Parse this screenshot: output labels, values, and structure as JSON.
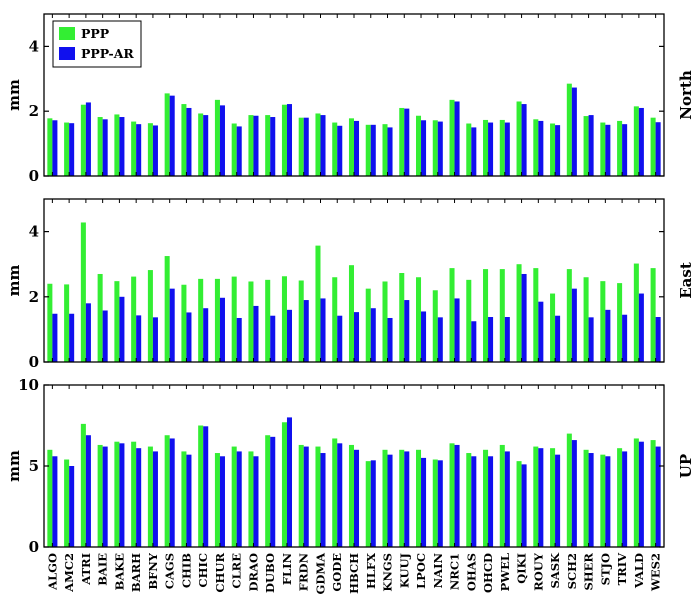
{
  "chart_data": {
    "type": "bar",
    "categories": [
      "ALGO",
      "AMC2",
      "ATRI",
      "BAIE",
      "BAKE",
      "BARH",
      "BFNY",
      "CAGS",
      "CHIB",
      "CHIC",
      "CHUR",
      "CLRE",
      "DRAO",
      "DUBO",
      "FLIN",
      "FRDN",
      "GDMA",
      "GODE",
      "HBCH",
      "HLFX",
      "KNGS",
      "KUUJ",
      "LPOC",
      "NAIN",
      "NRC1",
      "OHAS",
      "OHCD",
      "PWEL",
      "QIKI",
      "ROUY",
      "SASK",
      "SCH2",
      "SHER",
      "STJO",
      "TRIV",
      "VALD",
      "WES2"
    ],
    "legend": {
      "position": "top-left",
      "entries": [
        {
          "name": "PPP",
          "color": "#33ee33"
        },
        {
          "name": "PPP-AR",
          "color": "#1010ee"
        }
      ]
    },
    "colors": {
      "PPP": "#33ee33",
      "PPP-AR": "#1010ee"
    },
    "grid": false,
    "panels": [
      {
        "ylabel": "mm",
        "title": "North",
        "ylim": [
          0,
          5
        ],
        "yticks": [
          0,
          2,
          4
        ],
        "series": [
          {
            "name": "PPP",
            "values": [
              1.78,
              1.65,
              2.2,
              1.82,
              1.9,
              1.68,
              1.63,
              2.55,
              2.22,
              1.93,
              2.35,
              1.62,
              1.88,
              1.88,
              2.2,
              1.8,
              1.93,
              1.65,
              1.78,
              1.58,
              1.6,
              2.1,
              1.86,
              1.72,
              2.35,
              1.62,
              1.73,
              1.73,
              2.3,
              1.75,
              1.62,
              2.85,
              1.85,
              1.65,
              1.7,
              2.15,
              1.8
            ]
          },
          {
            "name": "PPP-AR",
            "values": [
              1.72,
              1.63,
              2.27,
              1.75,
              1.82,
              1.6,
              1.56,
              2.48,
              2.1,
              1.88,
              2.18,
              1.53,
              1.86,
              1.82,
              2.22,
              1.8,
              1.88,
              1.55,
              1.7,
              1.58,
              1.5,
              2.08,
              1.72,
              1.68,
              2.3,
              1.5,
              1.65,
              1.65,
              2.22,
              1.7,
              1.57,
              2.73,
              1.88,
              1.58,
              1.6,
              2.1,
              1.66
            ]
          }
        ]
      },
      {
        "ylabel": "mm",
        "title": "East",
        "ylim": [
          0,
          5
        ],
        "yticks": [
          0,
          2,
          4
        ],
        "series": [
          {
            "name": "PPP",
            "values": [
              2.4,
              2.38,
              4.28,
              2.7,
              2.48,
              2.62,
              2.82,
              3.25,
              2.37,
              2.55,
              2.55,
              2.62,
              2.47,
              2.52,
              2.63,
              2.5,
              3.57,
              2.6,
              2.97,
              2.25,
              2.47,
              2.73,
              2.6,
              2.2,
              2.88,
              2.52,
              2.85,
              2.85,
              3.0,
              2.88,
              2.1,
              2.85,
              2.6,
              2.48,
              2.42,
              3.02,
              2.88
            ]
          },
          {
            "name": "PPP-AR",
            "values": [
              1.48,
              1.48,
              1.8,
              1.58,
              2.0,
              1.43,
              1.37,
              2.25,
              1.52,
              1.65,
              1.97,
              1.35,
              1.72,
              1.42,
              1.6,
              1.9,
              1.95,
              1.42,
              1.53,
              1.65,
              1.35,
              1.9,
              1.55,
              1.37,
              1.95,
              1.25,
              1.38,
              1.38,
              2.7,
              1.85,
              1.42,
              2.25,
              1.37,
              1.6,
              1.45,
              2.1,
              1.38
            ]
          }
        ]
      },
      {
        "ylabel": "mm",
        "title": "UP",
        "ylim": [
          0,
          10
        ],
        "yticks": [
          0,
          5,
          10
        ],
        "series": [
          {
            "name": "PPP",
            "values": [
              6.0,
              5.4,
              7.6,
              6.3,
              6.5,
              6.5,
              6.2,
              6.9,
              5.9,
              7.5,
              5.8,
              6.2,
              5.9,
              6.9,
              7.7,
              6.3,
              6.2,
              6.7,
              6.3,
              5.3,
              6.0,
              6.0,
              6.0,
              5.4,
              6.4,
              5.8,
              6.0,
              6.3,
              5.3,
              6.2,
              6.1,
              7.0,
              6.0,
              5.7,
              6.1,
              6.7,
              6.6
            ]
          },
          {
            "name": "PPP-AR",
            "values": [
              5.6,
              5.0,
              6.9,
              6.2,
              6.4,
              6.1,
              5.9,
              6.7,
              5.7,
              7.45,
              5.6,
              5.9,
              5.6,
              6.8,
              8.0,
              6.2,
              5.8,
              6.4,
              6.0,
              5.35,
              5.7,
              5.9,
              5.5,
              5.35,
              6.3,
              5.6,
              5.6,
              5.9,
              5.1,
              6.1,
              5.7,
              6.6,
              5.8,
              5.6,
              5.9,
              6.5,
              6.2
            ]
          }
        ]
      }
    ]
  }
}
